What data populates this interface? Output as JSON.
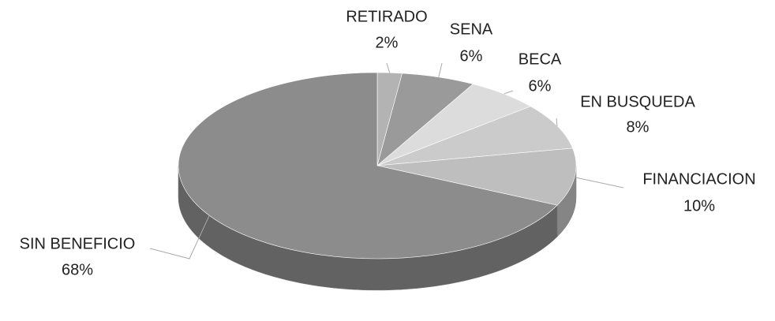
{
  "chart_data": {
    "type": "pie",
    "categories": [
      "RETIRADO",
      "SENA",
      "BECA",
      "EN BUSQUEDA",
      "FINANCIACION",
      "SIN BENEFICIO"
    ],
    "values": [
      2,
      6,
      6,
      8,
      10,
      68
    ],
    "value_labels": [
      "2%",
      "6%",
      "6%",
      "8%",
      "10%",
      "68%"
    ],
    "colors": [
      "#b3b3b3",
      "#9a9a9a",
      "#dcdcdc",
      "#cbcbcb",
      "#bebebe",
      "#8c8c8c"
    ]
  }
}
